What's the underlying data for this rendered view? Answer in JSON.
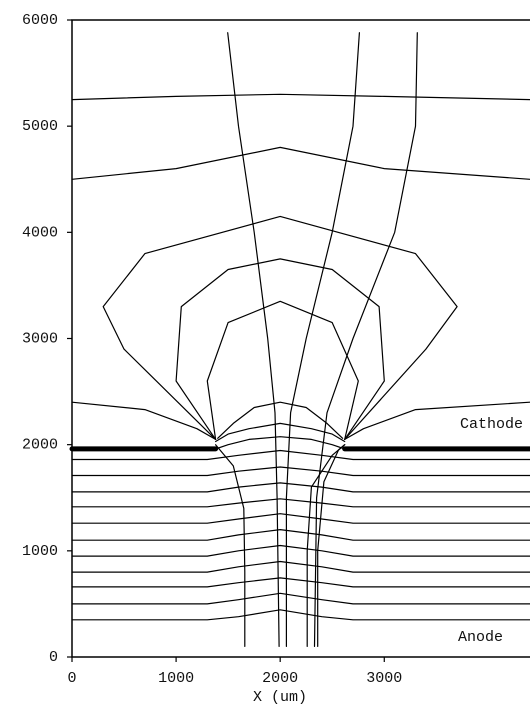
{
  "chart_data": {
    "type": "line",
    "xlabel": "X (um)",
    "xlim": [
      0,
      4400
    ],
    "ylim": [
      0,
      6000
    ],
    "xticks": [
      0,
      1000,
      2000,
      3000
    ],
    "yticks": [
      0,
      1000,
      2000,
      3000,
      4000,
      5000,
      6000
    ],
    "annotations": [
      "Cathode",
      "Anode"
    ],
    "series": [
      {
        "color": "#000000",
        "linewidth": 5,
        "x": [
          0,
          1380,
          null,
          2620,
          4400
        ],
        "values": [
          1960,
          1960,
          null,
          1960,
          1960
        ]
      },
      {
        "color": "#000000",
        "x": [
          0,
          1300,
          1600,
          2000,
          2400,
          2700,
          4400
        ],
        "values": [
          350,
          350,
          380,
          445,
          380,
          350,
          350
        ]
      },
      {
        "color": "#000000",
        "x": [
          0,
          1300,
          1600,
          2000,
          2400,
          2700,
          4400
        ],
        "values": [
          500,
          500,
          540,
          600,
          540,
          500,
          500
        ]
      },
      {
        "color": "#000000",
        "x": [
          0,
          1300,
          1600,
          2000,
          2400,
          2700,
          4400
        ],
        "values": [
          660,
          660,
          700,
          745,
          700,
          660,
          660
        ]
      },
      {
        "color": "#000000",
        "x": [
          0,
          1300,
          1600,
          2000,
          2400,
          2700,
          4400
        ],
        "values": [
          800,
          800,
          850,
          900,
          850,
          800,
          800
        ]
      },
      {
        "color": "#000000",
        "x": [
          0,
          1300,
          1600,
          2000,
          2400,
          2700,
          4400
        ],
        "values": [
          950,
          950,
          1000,
          1050,
          1000,
          950,
          950
        ]
      },
      {
        "color": "#000000",
        "x": [
          0,
          1300,
          1600,
          2000,
          2400,
          2700,
          4400
        ],
        "values": [
          1100,
          1100,
          1150,
          1200,
          1150,
          1100,
          1100
        ]
      },
      {
        "color": "#000000",
        "x": [
          0,
          1300,
          1600,
          2000,
          2400,
          2700,
          4400
        ],
        "values": [
          1260,
          1260,
          1300,
          1350,
          1300,
          1260,
          1260
        ]
      },
      {
        "color": "#000000",
        "x": [
          0,
          1300,
          1600,
          2000,
          2400,
          2700,
          4400
        ],
        "values": [
          1415,
          1415,
          1450,
          1490,
          1450,
          1415,
          1415
        ]
      },
      {
        "color": "#000000",
        "x": [
          0,
          1300,
          1600,
          2000,
          2400,
          2700,
          4400
        ],
        "values": [
          1555,
          1555,
          1600,
          1640,
          1600,
          1555,
          1555
        ]
      },
      {
        "color": "#000000",
        "x": [
          0,
          1300,
          1600,
          2000,
          2400,
          2700,
          4400
        ],
        "values": [
          1710,
          1710,
          1750,
          1790,
          1750,
          1710,
          1710
        ]
      },
      {
        "color": "#000000",
        "x": [
          0,
          1300,
          1600,
          2000,
          2400,
          2700,
          4400
        ],
        "values": [
          1860,
          1860,
          1900,
          1945,
          1900,
          1860,
          1860
        ]
      },
      {
        "color": "#000000",
        "x": [
          1350,
          1500,
          1700,
          2000,
          2300,
          2500,
          2650
        ],
        "values": [
          1950,
          2000,
          2050,
          2075,
          2050,
          2000,
          1950
        ]
      },
      {
        "color": "#000000",
        "x": [
          1380,
          1500,
          1700,
          2000,
          2300,
          2500,
          2620
        ],
        "values": [
          2030,
          2100,
          2150,
          2200,
          2150,
          2100,
          2030
        ]
      },
      {
        "color": "#000000",
        "x": [
          1400,
          1550,
          1750,
          2000,
          2250,
          2450,
          2600
        ],
        "values": [
          2060,
          2200,
          2350,
          2400,
          2350,
          2200,
          2060
        ]
      },
      {
        "color": "#000000",
        "x": [
          0,
          1000,
          2000,
          3000,
          4400
        ],
        "values": [
          5250,
          5280,
          5300,
          5280,
          5250
        ]
      },
      {
        "color": "#000000",
        "x": [
          0,
          1000,
          2000,
          3000,
          4400
        ],
        "values": [
          4500,
          4600,
          4800,
          4600,
          4500
        ]
      },
      {
        "color": "#000000",
        "x": [
          0,
          700,
          1200,
          1380
        ],
        "values": [
          2400,
          2330,
          2150,
          2050
        ]
      },
      {
        "color": "#000000",
        "x": [
          2620,
          2800,
          3300,
          4400
        ],
        "values": [
          2050,
          2150,
          2330,
          2400
        ]
      },
      {
        "color": "#000000",
        "x": [
          1380,
          500,
          300,
          700,
          2000,
          3300,
          3700,
          3400,
          2620
        ],
        "values": [
          2050,
          2900,
          3300,
          3800,
          4150,
          3800,
          3300,
          2900,
          2050
        ]
      },
      {
        "color": "#000000",
        "x": [
          1380,
          1000,
          1050,
          1500,
          2000,
          2500,
          2950,
          3000,
          2620
        ],
        "values": [
          2050,
          2600,
          3300,
          3650,
          3750,
          3650,
          3300,
          2600,
          2050
        ]
      },
      {
        "color": "#000000",
        "x": [
          1380,
          1300,
          1500,
          2000,
          2500,
          2750,
          2620
        ],
        "values": [
          2050,
          2600,
          3150,
          3350,
          3150,
          2600,
          2050
        ]
      },
      {
        "color": "#000000",
        "x": [
          1496,
          1600,
          1750,
          1880,
          1950,
          1970,
          1990
        ],
        "values": [
          5880,
          5000,
          4000,
          3000,
          2300,
          1500,
          100
        ]
      },
      {
        "color": "#000000",
        "x": [
          2761,
          2700,
          2500,
          2250,
          2100,
          2060,
          2060
        ],
        "values": [
          5880,
          5000,
          4000,
          3000,
          2300,
          1500,
          100
        ]
      },
      {
        "color": "#000000",
        "x": [
          3317,
          3300,
          3100,
          2700,
          2450,
          2350,
          2330
        ],
        "values": [
          5880,
          5000,
          4000,
          3000,
          2300,
          1500,
          100
        ]
      },
      {
        "color": "#000000",
        "x": [
          1380,
          1550,
          1650,
          1660,
          1660
        ],
        "values": [
          2000,
          1800,
          1400,
          800,
          100
        ]
      },
      {
        "color": "#000000",
        "x": [
          2620,
          2500,
          2300,
          2260,
          2260
        ],
        "values": [
          2000,
          1900,
          1600,
          1000,
          100
        ]
      },
      {
        "color": "#000000",
        "x": [
          2620,
          2560,
          2420,
          2360,
          2360
        ],
        "values": [
          2000,
          1950,
          1650,
          1000,
          100
        ]
      }
    ]
  }
}
